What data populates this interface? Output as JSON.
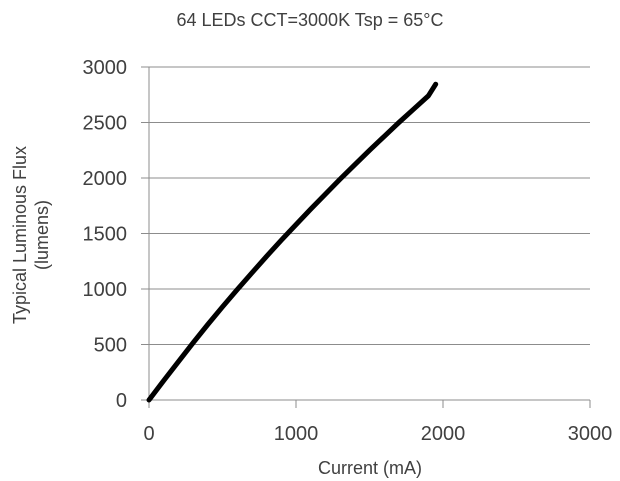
{
  "chart_data": {
    "type": "line",
    "title": "64 LEDs CCT=3000K Tsp = 65°C",
    "xlabel": "Current (mA)",
    "ylabel_line1": "Typical Luminous Flux",
    "ylabel_line2": "(lumens)",
    "xlim": [
      0,
      3000
    ],
    "ylim": [
      0,
      3000
    ],
    "x_ticks": [
      0,
      1000,
      2000,
      3000
    ],
    "y_ticks": [
      0,
      500,
      1000,
      1500,
      2000,
      2500,
      3000
    ],
    "grid": "horizontal",
    "series": [
      {
        "color": "#000000",
        "x": [
          0,
          100,
          200,
          300,
          400,
          500,
          600,
          700,
          800,
          900,
          1000,
          1100,
          1200,
          1300,
          1400,
          1500,
          1600,
          1700,
          1800,
          1900,
          1950
        ],
        "y": [
          0,
          175,
          345,
          515,
          680,
          840,
          995,
          1145,
          1295,
          1440,
          1580,
          1720,
          1855,
          1990,
          2120,
          2250,
          2375,
          2500,
          2620,
          2740,
          2845
        ]
      }
    ]
  }
}
